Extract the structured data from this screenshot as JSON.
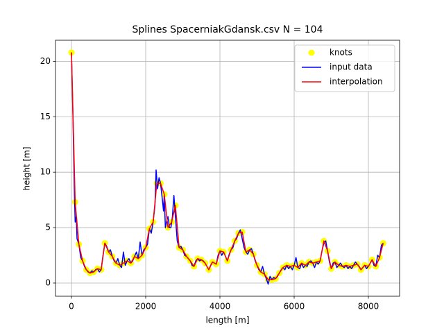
{
  "chart_data": {
    "type": "line",
    "title": "Splines SpacerniakGdansk.csv N = 104",
    "x_label": "length [m]",
    "y_label": "height [m]",
    "xlim": [
      -430,
      8841
    ],
    "ylim": [
      -1.19,
      21.9
    ],
    "xticks": [
      0,
      2000,
      4000,
      6000,
      8000
    ],
    "yticks": [
      0,
      5,
      10,
      15,
      20
    ],
    "grid": true,
    "legend": "upper right",
    "series": [
      {
        "name": "knots",
        "type": "scatter",
        "color": "#ffff00",
        "x": [
          0,
          100,
          200,
          300,
          400,
          500,
          600,
          700,
          800,
          900,
          1000,
          1100,
          1200,
          1300,
          1400,
          1500,
          1600,
          1700,
          1800,
          1900,
          2000,
          2100,
          2200,
          2300,
          2400,
          2500,
          2600,
          2700,
          2800,
          2900,
          3000,
          3100,
          3200,
          3300,
          3400,
          3500,
          3600,
          3700,
          3800,
          3900,
          4000,
          4100,
          4200,
          4300,
          4400,
          4500,
          4600,
          4700,
          4800,
          4900,
          5000,
          5100,
          5200,
          5300,
          5400,
          5500,
          5600,
          5700,
          5800,
          5900,
          6000,
          6100,
          6200,
          6300,
          6400,
          6500,
          6600,
          6700,
          6800,
          6900,
          7000,
          7100,
          7200,
          7300,
          7400,
          7500,
          7600,
          7700,
          7800,
          7900,
          8000,
          8100,
          8200,
          8300,
          8400
        ],
        "values": [
          20.8,
          7.3,
          3.5,
          2,
          1.2,
          0.9,
          1,
          1.3,
          1.2,
          3.6,
          2.8,
          2.4,
          1.8,
          1.6,
          1.8,
          2,
          1.8,
          2.4,
          2.2,
          2.5,
          3.2,
          4.9,
          5.5,
          9,
          9,
          8,
          5,
          5.5,
          7,
          3.2,
          3,
          2.4,
          2,
          1.5,
          2.2,
          2.1,
          1.8,
          1.2,
          1.9,
          1.7,
          2.9,
          2.8,
          2,
          3,
          3.8,
          4.5,
          4.6,
          2.8,
          3,
          2.6,
          1.6,
          1,
          0.8,
          0.3,
          0.3,
          0.4,
          0.9,
          1.4,
          1.6,
          1.5,
          1.6,
          1.4,
          1.8,
          1.6,
          1.9,
          1.8,
          1.9,
          2,
          3.8,
          2.9,
          1.3,
          1.9,
          1.6,
          1.5,
          1.6,
          1.5,
          1.6,
          1.7,
          1.2,
          1.6,
          1.5,
          2.1,
          1.5,
          2.3,
          3.6
        ]
      },
      {
        "name": "input data",
        "type": "line",
        "color": "#0000ff",
        "x": [
          0,
          40,
          80,
          100,
          130,
          150,
          200,
          250,
          300,
          350,
          400,
          450,
          500,
          550,
          600,
          650,
          700,
          750,
          800,
          850,
          900,
          950,
          1000,
          1050,
          1100,
          1150,
          1200,
          1250,
          1300,
          1350,
          1400,
          1450,
          1500,
          1550,
          1600,
          1650,
          1700,
          1750,
          1800,
          1850,
          1900,
          1950,
          2000,
          2050,
          2100,
          2150,
          2200,
          2250,
          2280,
          2320,
          2360,
          2400,
          2450,
          2480,
          2500,
          2530,
          2560,
          2600,
          2640,
          2680,
          2720,
          2760,
          2800,
          2850,
          2900,
          2950,
          3000,
          3050,
          3100,
          3150,
          3200,
          3250,
          3300,
          3350,
          3400,
          3450,
          3500,
          3550,
          3600,
          3650,
          3700,
          3750,
          3800,
          3850,
          3900,
          3950,
          4000,
          4050,
          4100,
          4150,
          4200,
          4250,
          4300,
          4350,
          4400,
          4450,
          4500,
          4550,
          4600,
          4650,
          4700,
          4750,
          4800,
          4850,
          4900,
          4950,
          5000,
          5050,
          5100,
          5150,
          5200,
          5250,
          5300,
          5350,
          5400,
          5450,
          5500,
          5550,
          5600,
          5650,
          5700,
          5750,
          5800,
          5850,
          5900,
          5950,
          6000,
          6050,
          6100,
          6150,
          6200,
          6250,
          6300,
          6350,
          6400,
          6450,
          6500,
          6550,
          6600,
          6650,
          6700,
          6750,
          6800,
          6850,
          6900,
          6950,
          7000,
          7050,
          7100,
          7150,
          7200,
          7250,
          7300,
          7350,
          7400,
          7450,
          7500,
          7550,
          7600,
          7650,
          7700,
          7750,
          7800,
          7850,
          7900,
          7950,
          8000,
          8050,
          8100,
          8150,
          8200,
          8250,
          8300,
          8350,
          8400
        ],
        "values": [
          20.8,
          15,
          8,
          5.5,
          6,
          4,
          3.5,
          2.3,
          2,
          1.5,
          1.2,
          1,
          0.9,
          1.1,
          1,
          1.2,
          1.3,
          1,
          1.2,
          2.5,
          3.6,
          3.3,
          2.8,
          3,
          2.4,
          2,
          1.8,
          2.2,
          1.6,
          1.4,
          2.8,
          1.6,
          2,
          2.2,
          1.8,
          2,
          2.4,
          2.8,
          2.2,
          3.7,
          2.5,
          3,
          3.2,
          3.5,
          4.9,
          4.5,
          5.5,
          7,
          10.2,
          8.5,
          9.5,
          9,
          7.5,
          6.5,
          8,
          5,
          5.5,
          6,
          5,
          5,
          6,
          7.9,
          6,
          3.8,
          3.2,
          3.3,
          3,
          2.5,
          2.4,
          2.2,
          2,
          1.6,
          1.5,
          2,
          2.2,
          2,
          2.1,
          2,
          1.8,
          1.5,
          1.2,
          1.6,
          1.9,
          1.8,
          1.7,
          2.5,
          2.9,
          2.5,
          2.8,
          2.4,
          2,
          2.6,
          3,
          3.2,
          3.8,
          4,
          4.5,
          4.8,
          4,
          3.2,
          2.8,
          2.6,
          3,
          3.1,
          2.6,
          2,
          1.6,
          1.2,
          1,
          1.5,
          0.8,
          0.4,
          -0.1,
          0.6,
          0.3,
          0.5,
          0.4,
          0.6,
          0.9,
          1.2,
          1.4,
          1.2,
          1.6,
          1.3,
          1.5,
          1.2,
          1.6,
          2.3,
          1.4,
          1.3,
          1.8,
          1.4,
          1.6,
          1.5,
          1.9,
          2,
          1.8,
          1.4,
          1.9,
          1.7,
          2,
          2.9,
          3.6,
          3.8,
          2.9,
          1.9,
          1.3,
          1.8,
          1.9,
          1.4,
          1.6,
          1.8,
          1.5,
          1.4,
          1.6,
          1.3,
          1.5,
          1.3,
          1.6,
          1.9,
          1.7,
          1.5,
          1.2,
          1.4,
          1.6,
          1.3,
          1.5,
          1.8,
          2.1,
          1.6,
          1.5,
          2.5,
          2.3,
          3.4,
          3.6
        ]
      },
      {
        "name": "interpolation",
        "type": "line",
        "color": "#ff0000",
        "x": [
          0,
          100,
          200,
          300,
          400,
          500,
          600,
          700,
          800,
          900,
          1000,
          1100,
          1200,
          1300,
          1400,
          1500,
          1600,
          1700,
          1800,
          1900,
          2000,
          2100,
          2200,
          2300,
          2400,
          2500,
          2600,
          2700,
          2800,
          2900,
          3000,
          3100,
          3200,
          3300,
          3400,
          3500,
          3600,
          3700,
          3800,
          3900,
          4000,
          4100,
          4200,
          4300,
          4400,
          4500,
          4600,
          4700,
          4800,
          4900,
          5000,
          5100,
          5200,
          5300,
          5400,
          5500,
          5600,
          5700,
          5800,
          5900,
          6000,
          6100,
          6200,
          6300,
          6400,
          6500,
          6600,
          6700,
          6800,
          6900,
          7000,
          7100,
          7200,
          7300,
          7400,
          7500,
          7600,
          7700,
          7800,
          7900,
          8000,
          8100,
          8200,
          8300,
          8400
        ],
        "values": [
          20.8,
          7.3,
          3.5,
          2,
          1.2,
          0.9,
          1,
          1.3,
          1.2,
          3.6,
          2.8,
          2.4,
          1.8,
          1.6,
          1.8,
          2,
          1.8,
          2.4,
          2.2,
          2.5,
          3.2,
          4.9,
          5.5,
          9,
          9,
          8,
          5,
          5.5,
          7,
          3.2,
          3,
          2.4,
          2,
          1.5,
          2.2,
          2.1,
          1.8,
          1.2,
          1.9,
          1.7,
          2.9,
          2.8,
          2,
          3,
          3.8,
          4.5,
          4.6,
          2.8,
          3,
          2.6,
          1.6,
          1,
          0.8,
          0.3,
          0.3,
          0.4,
          0.9,
          1.4,
          1.6,
          1.5,
          1.6,
          1.4,
          1.8,
          1.6,
          1.9,
          1.8,
          1.9,
          2,
          3.8,
          2.9,
          1.3,
          1.9,
          1.6,
          1.5,
          1.6,
          1.5,
          1.6,
          1.7,
          1.2,
          1.6,
          1.5,
          2.1,
          1.5,
          2.3,
          3.6
        ]
      }
    ]
  }
}
